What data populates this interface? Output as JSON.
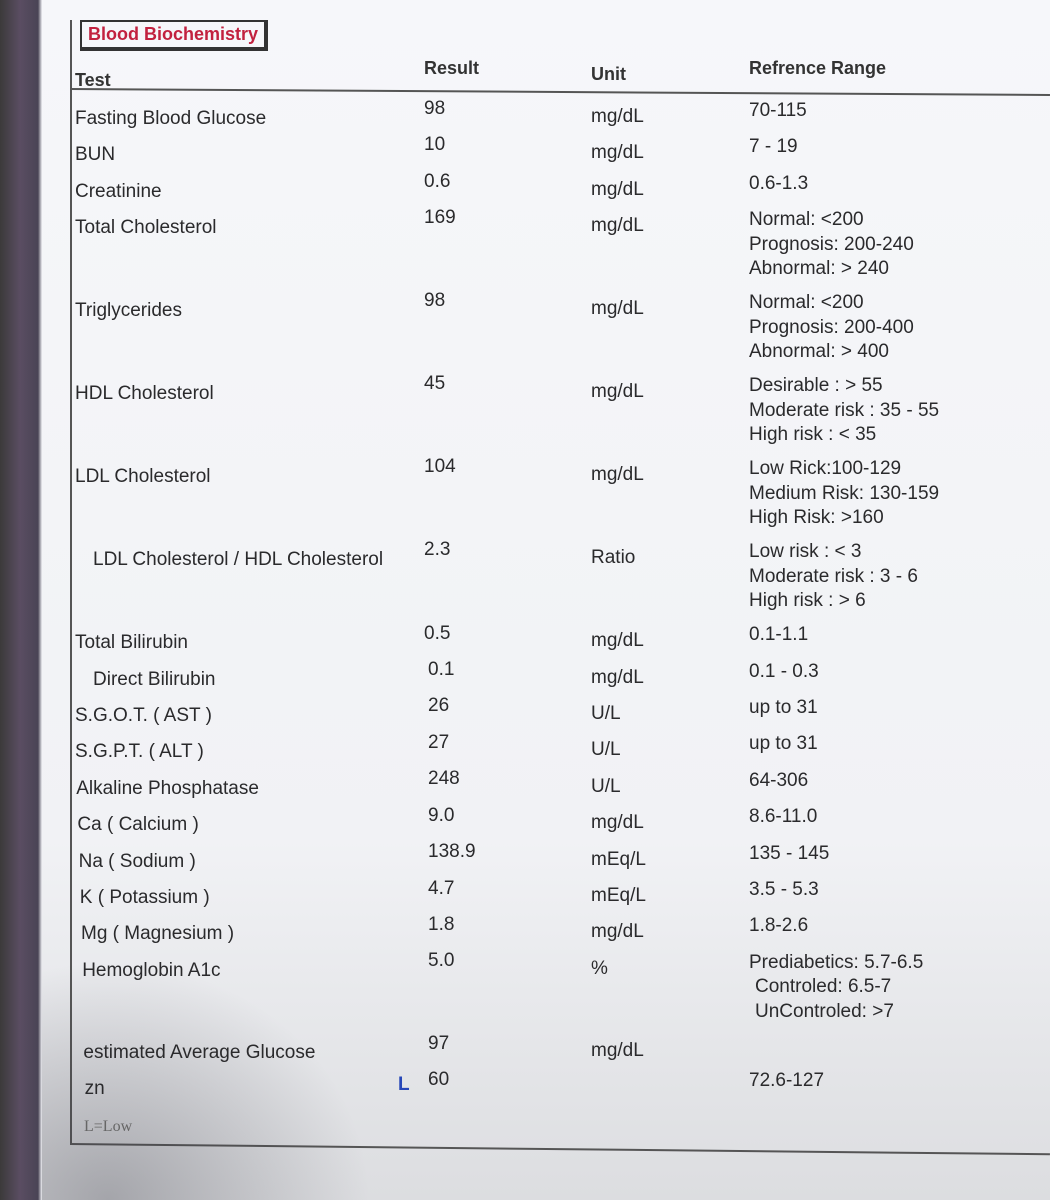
{
  "header": {
    "title": "Blood Biochemistry"
  },
  "table": {
    "columns": [
      "Test",
      "Result",
      "Unit",
      "Refrence Range"
    ],
    "rows": [
      {
        "test": "Fasting Blood Glucose",
        "result": "98",
        "unit": "mg/dL",
        "range": [
          "70-115"
        ]
      },
      {
        "test": "BUN",
        "result": "10",
        "unit": "mg/dL",
        "range": [
          "7 - 19"
        ]
      },
      {
        "test": "Creatinine",
        "result": "0.6",
        "unit": "mg/dL",
        "range": [
          "0.6-1.3"
        ]
      },
      {
        "test": "Total Cholesterol",
        "result": "169",
        "unit": "mg/dL",
        "range": [
          "Normal: <200",
          "Prognosis: 200-240",
          "Abnormal: > 240"
        ]
      },
      {
        "test": "Triglycerides",
        "result": "98",
        "unit": "mg/dL",
        "range": [
          "Normal: <200",
          "Prognosis: 200-400",
          "Abnormal: > 400"
        ]
      },
      {
        "test": "HDL Cholesterol",
        "result": "45",
        "unit": "mg/dL",
        "range": [
          "Desirable : > 55",
          "Moderate risk :  35 - 55",
          "High risk : < 35"
        ]
      },
      {
        "test": "LDL Cholesterol",
        "result": "104",
        "unit": "mg/dL",
        "range": [
          "Low Rick:100-129",
          "Medium Risk: 130-159",
          "High Risk: >160"
        ]
      },
      {
        "test": "LDL Cholesterol / HDL Cholesterol",
        "result": "2.3",
        "unit": "Ratio",
        "range": [
          "Low risk : < 3",
          "Moderate risk : 3 - 6",
          "High risk : > 6"
        ]
      },
      {
        "test": "Total Bilirubin",
        "result": "0.5",
        "unit": "mg/dL",
        "range": [
          "0.1-1.1"
        ]
      },
      {
        "test": "Direct Bilirubin",
        "result": "0.1",
        "unit": "mg/dL",
        "range": [
          "0.1 - 0.3"
        ]
      },
      {
        "test": "S.G.O.T. ( AST )",
        "result": "26",
        "unit": "U/L",
        "range": [
          "up to 31"
        ]
      },
      {
        "test": "S.G.P.T. ( ALT )",
        "result": "27",
        "unit": "U/L",
        "range": [
          "up to 31"
        ]
      },
      {
        "test": "Alkaline Phosphatase",
        "result": "248",
        "unit": "U/L",
        "range": [
          "64-306"
        ]
      },
      {
        "test": "Ca ( Calcium )",
        "result": "9.0",
        "unit": "mg/dL",
        "range": [
          "8.6-11.0"
        ]
      },
      {
        "test": "Na ( Sodium )",
        "result": "138.9",
        "unit": "mEq/L",
        "range": [
          "135 - 145"
        ]
      },
      {
        "test": "K ( Potassium )",
        "result": "4.7",
        "unit": "mEq/L",
        "range": [
          "3.5 - 5.3"
        ]
      },
      {
        "test": "Mg ( Magnesium )",
        "result": "1.8",
        "unit": "mg/dL",
        "range": [
          "1.8-2.6"
        ]
      },
      {
        "test": "Hemoglobin A1c",
        "result": "5.0",
        "unit": "%",
        "range": [
          "Prediabetics: 5.7-6.5",
          "Controled: 6.5-7",
          "UnControled: >7"
        ]
      },
      {
        "test": "estimated Average Glucose",
        "result": "97",
        "unit": "mg/dL"
      },
      {
        "test": "zn",
        "flag": "L",
        "result": "60",
        "range": [
          "72.6-127"
        ]
      }
    ]
  },
  "footer": {
    "note": "L=Low"
  }
}
